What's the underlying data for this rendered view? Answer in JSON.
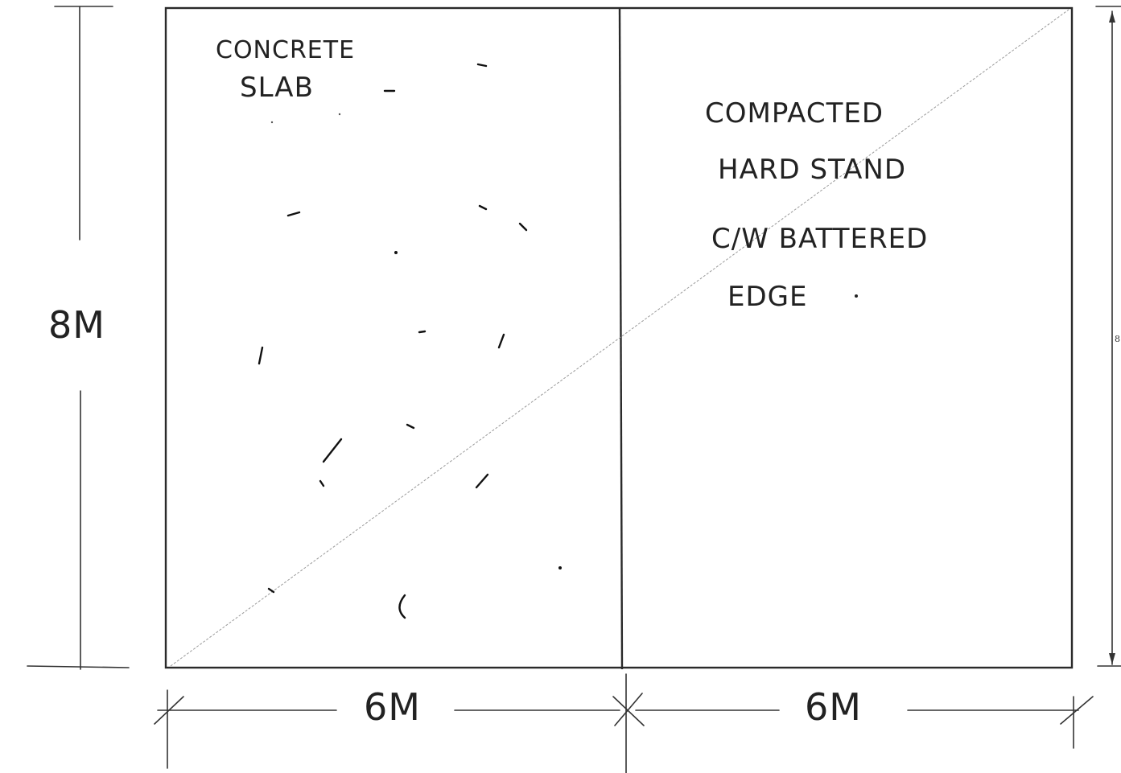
{
  "labels": {
    "slab_line1": "CONCRETE",
    "slab_line2": "SLAB",
    "hardstand_line1": "COMPACTED",
    "hardstand_line2": "HARD STAND",
    "hardstand_line3": "C/W BATTERED",
    "hardstand_line4": "EDGE",
    "height_dim": "8M",
    "width_left_dim": "6M",
    "width_right_dim": "6M",
    "right_edge_small": "8"
  },
  "colors": {
    "ink": "#222222",
    "diagonal": "#9a9a9a"
  }
}
